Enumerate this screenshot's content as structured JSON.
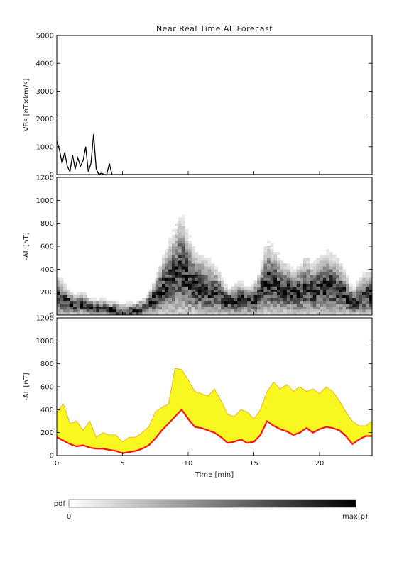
{
  "chart_data": [
    {
      "type": "line",
      "title": "Near Real Time AL Forecast",
      "xlabel": "",
      "ylabel": "VBs [nT×km/s]",
      "xlim": [
        0,
        24
      ],
      "ylim": [
        0,
        5000
      ],
      "yticks": [
        0,
        1000,
        2000,
        3000,
        4000,
        5000
      ],
      "grid": false,
      "series": [
        {
          "color": "#000000",
          "x": [
            0,
            0.2,
            0.4,
            0.6,
            0.8,
            1.0,
            1.2,
            1.4,
            1.6,
            1.8,
            2.0,
            2.2,
            2.4,
            2.6,
            2.8,
            3.0,
            3.2,
            3.4,
            3.6,
            3.8,
            4.0,
            4.2,
            4.4,
            4.6,
            4.8,
            5.0,
            5.2,
            5.4,
            5.6,
            5.8,
            6.0,
            6.2,
            6.4,
            6.6,
            6.8,
            7.0,
            7.2,
            7.4,
            7.6,
            7.8,
            8.0,
            8.2,
            8.4,
            8.6,
            8.8,
            9.0,
            9.2,
            9.4,
            9.6,
            9.8,
            10.0,
            10.2,
            10.4,
            10.6,
            10.8,
            11.0,
            11.2,
            11.4,
            11.6,
            11.8,
            12.0,
            12.2,
            12.4,
            12.6,
            12.8,
            13.0,
            13.2,
            13.4,
            13.6,
            13.8,
            14.0,
            14.2,
            14.4,
            14.6,
            14.8,
            15.0,
            15.2,
            15.4,
            15.6,
            15.8,
            16.0,
            16.2,
            16.4,
            16.6,
            16.8,
            17.0,
            17.2,
            17.4,
            17.6,
            17.8,
            18.0,
            18.2,
            18.4,
            18.6,
            18.8,
            19.0,
            19.2,
            19.4,
            19.6,
            19.8,
            20.0,
            20.2,
            20.4,
            20.6,
            20.8,
            21.0,
            21.2,
            21.4,
            21.6,
            21.8,
            22.0,
            22.2,
            22.4,
            22.6,
            22.8,
            23.0,
            23.2,
            23.4,
            23.6,
            23.8,
            24.0
          ],
          "y": [
            1200,
            900,
            400,
            800,
            300,
            100,
            700,
            200,
            600,
            300,
            500,
            1000,
            100,
            400,
            1450,
            200,
            0,
            50,
            0,
            0,
            400,
            0,
            0,
            0,
            0,
            0,
            0,
            0,
            0,
            0,
            0,
            0,
            0,
            0,
            0,
            0,
            0,
            0,
            0,
            0,
            0,
            0,
            0,
            0,
            0,
            0,
            0,
            0,
            0,
            0,
            0,
            0,
            0,
            0,
            0,
            0,
            0,
            0,
            0,
            0,
            0,
            0,
            0,
            0,
            0,
            0,
            0,
            0,
            0,
            0,
            0,
            0,
            0,
            0,
            0,
            0,
            0,
            0,
            0,
            0,
            0,
            0,
            0,
            0,
            0,
            0,
            0,
            0,
            0,
            0,
            0,
            0,
            0,
            0,
            0,
            0,
            0,
            0,
            0,
            0,
            0,
            0,
            0,
            0,
            0,
            0,
            0,
            0,
            0,
            0,
            0,
            0,
            0,
            0,
            0,
            0,
            0,
            0,
            0,
            0,
            0
          ]
        }
      ]
    },
    {
      "type": "heatmap",
      "title": "",
      "xlabel": "",
      "ylabel": "-AL [nT]",
      "xlim": [
        0,
        24
      ],
      "ylim": [
        0,
        1200
      ],
      "yticks": [
        0,
        200,
        400,
        600,
        800,
        1000,
        1200
      ],
      "grid": false,
      "colorscale": "white-to-black probability density"
    },
    {
      "type": "area",
      "title": "",
      "xlabel": "Time [min]",
      "ylabel": "-AL [nT]",
      "xlim": [
        0,
        24
      ],
      "ylim": [
        0,
        1200
      ],
      "xticks": [
        0,
        5,
        10,
        15,
        20
      ],
      "yticks": [
        0,
        200,
        400,
        600,
        800,
        1000,
        1200
      ],
      "grid": false,
      "series": [
        {
          "color": "#f8f820",
          "x": [
            0,
            0.5,
            1,
            1.5,
            2,
            2.5,
            3,
            3.5,
            4,
            4.5,
            5,
            5.5,
            6,
            6.5,
            7,
            7.5,
            8,
            8.5,
            9,
            9.5,
            10,
            10.5,
            11,
            11.5,
            12,
            12.5,
            13,
            13.5,
            14,
            14.5,
            15,
            15.5,
            16,
            16.5,
            17,
            17.5,
            18,
            18.5,
            19,
            19.5,
            20,
            20.5,
            21,
            21.5,
            22,
            22.5,
            23,
            23.5,
            24
          ],
          "y": [
            380,
            450,
            280,
            300,
            220,
            300,
            160,
            200,
            180,
            180,
            120,
            160,
            160,
            200,
            250,
            380,
            420,
            450,
            760,
            750,
            660,
            560,
            540,
            520,
            580,
            480,
            360,
            340,
            400,
            380,
            320,
            400,
            560,
            640,
            580,
            620,
            560,
            600,
            560,
            580,
            540,
            600,
            560,
            480,
            380,
            300,
            260,
            260,
            300
          ]
        },
        {
          "color": "#ff1010",
          "x": [
            0,
            0.5,
            1,
            1.5,
            2,
            2.5,
            3,
            3.5,
            4,
            4.5,
            5,
            5.5,
            6,
            6.5,
            7,
            7.5,
            8,
            8.5,
            9,
            9.5,
            10,
            10.5,
            11,
            11.5,
            12,
            12.5,
            13,
            13.5,
            14,
            14.5,
            15,
            15.5,
            16,
            16.5,
            17,
            17.5,
            18,
            18.5,
            19,
            19.5,
            20,
            20.5,
            21,
            21.5,
            22,
            22.5,
            23,
            23.5,
            24
          ],
          "y": [
            160,
            130,
            100,
            80,
            90,
            70,
            60,
            60,
            50,
            40,
            20,
            30,
            40,
            60,
            90,
            150,
            220,
            280,
            340,
            400,
            320,
            250,
            240,
            220,
            200,
            160,
            110,
            120,
            140,
            110,
            120,
            180,
            300,
            260,
            230,
            210,
            180,
            200,
            240,
            200,
            230,
            250,
            240,
            220,
            170,
            100,
            140,
            170,
            170
          ]
        }
      ],
      "legend": "none"
    }
  ],
  "colorbar": {
    "label": "pdf",
    "min_label": "0",
    "max_label": "max(p)"
  }
}
